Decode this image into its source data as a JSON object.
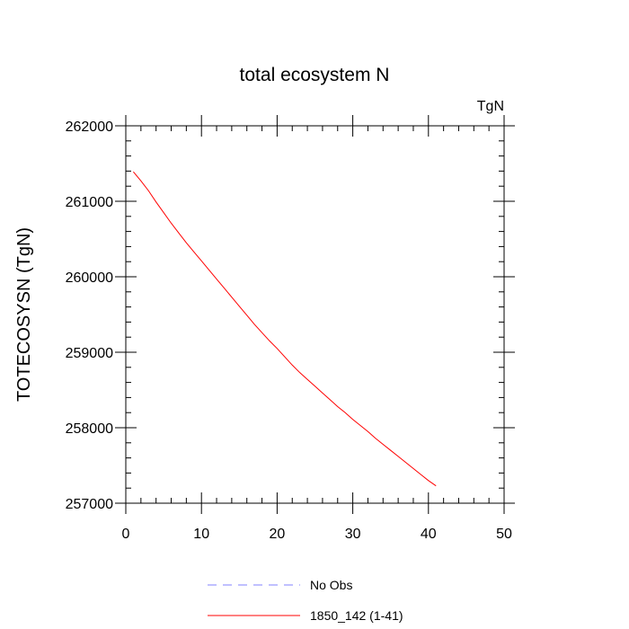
{
  "chart_data": {
    "type": "line",
    "title": "total ecosystem N",
    "units": "TgN",
    "xlabel": "",
    "ylabel": "TOTECOSYSN  (TgN)",
    "xlim": [
      0,
      50
    ],
    "ylim": [
      257000,
      262000
    ],
    "xticks": [
      0,
      10,
      20,
      30,
      40,
      50
    ],
    "yticks": [
      257000,
      258000,
      259000,
      260000,
      261000,
      262000
    ],
    "xminor_step": 2,
    "yminor_step": 200,
    "grid": false,
    "legend_position": "bottom",
    "series": [
      {
        "name": "No Obs",
        "color": "#8080ff",
        "dash": "dashed",
        "x": [],
        "y": []
      },
      {
        "name": "1850_142 (1-41)",
        "color": "#ff0000",
        "dash": "solid",
        "x": [
          1,
          2,
          3,
          4,
          5,
          6,
          7,
          8,
          9,
          10,
          11,
          12,
          13,
          14,
          15,
          16,
          17,
          18,
          19,
          20,
          21,
          22,
          23,
          24,
          25,
          26,
          27,
          28,
          29,
          30,
          31,
          32,
          33,
          34,
          35,
          36,
          37,
          38,
          39,
          40,
          41
        ],
        "y": [
          261390,
          261270,
          261140,
          260990,
          260850,
          260710,
          260580,
          260450,
          260330,
          260210,
          260090,
          259970,
          259850,
          259730,
          259610,
          259490,
          259370,
          259260,
          259150,
          259050,
          258940,
          258830,
          258730,
          258640,
          258550,
          258460,
          258370,
          258280,
          258200,
          258110,
          258030,
          257950,
          257860,
          257780,
          257700,
          257620,
          257540,
          257460,
          257380,
          257300,
          257230
        ]
      }
    ]
  }
}
